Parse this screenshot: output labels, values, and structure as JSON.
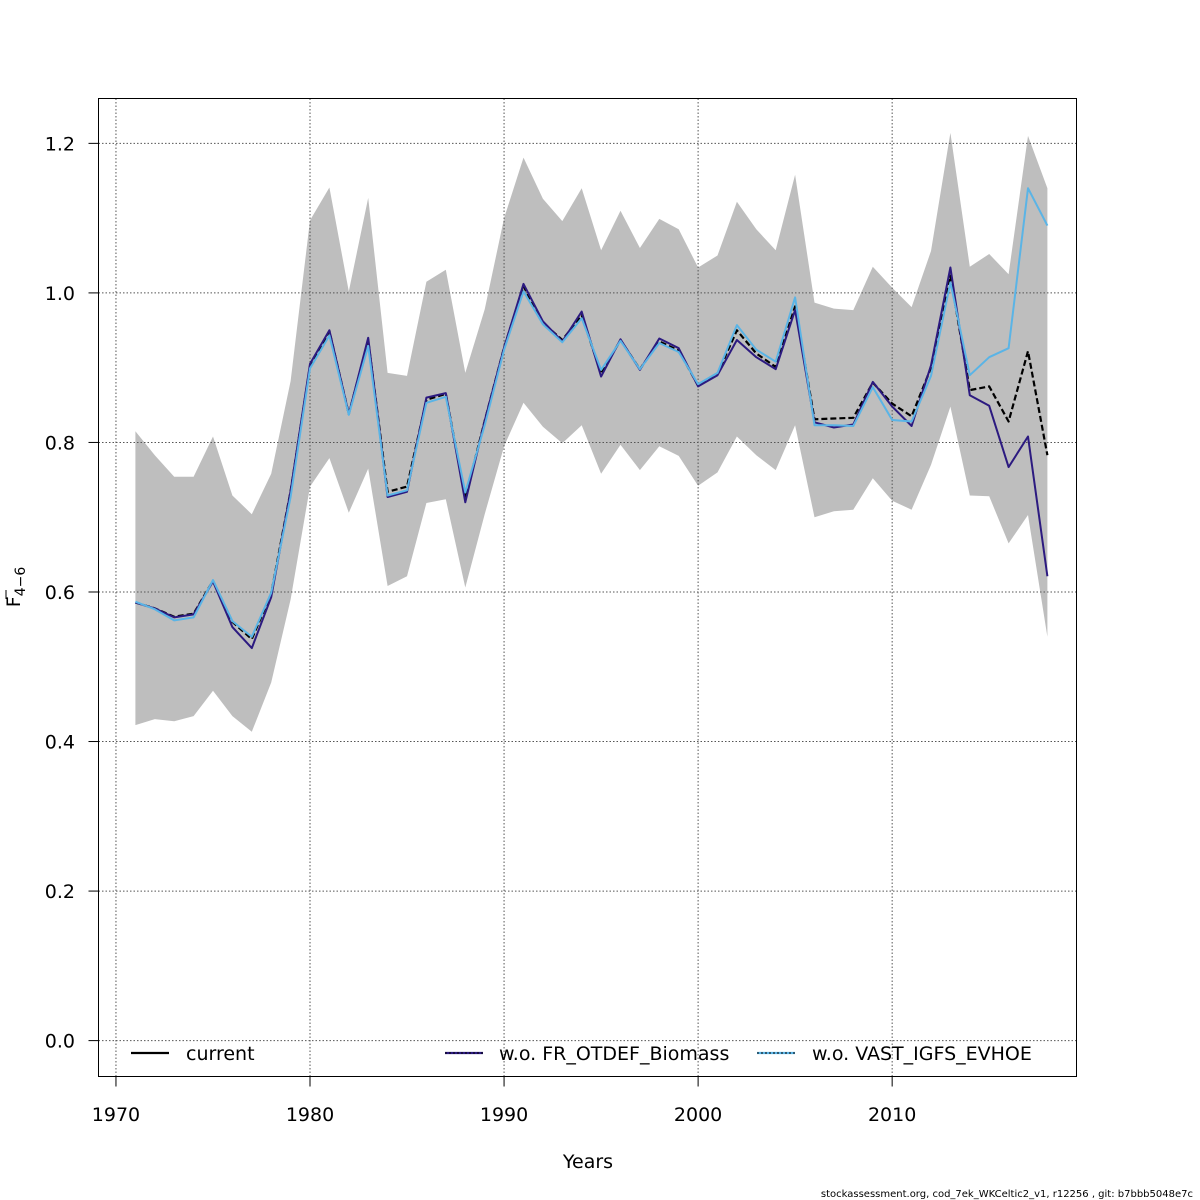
{
  "chart_data": {
    "type": "line",
    "xlabel": "Years",
    "ylabel_main": "F",
    "ylabel_sub": "4−6",
    "xlim": [
      1969.1,
      2019.5
    ],
    "ylim": [
      -0.048,
      1.26
    ],
    "x_ticks": [
      1970,
      1980,
      1990,
      2000,
      2010
    ],
    "y_ticks": [
      0.0,
      0.2,
      0.4,
      0.6,
      0.8,
      1.0,
      1.2
    ],
    "y_tick_labels": [
      "0.0",
      "0.2",
      "0.4",
      "0.6",
      "0.8",
      "1.0",
      "1.2"
    ],
    "grid": true,
    "x": [
      1971,
      1972,
      1973,
      1974,
      1975,
      1976,
      1977,
      1978,
      1979,
      1980,
      1981,
      1982,
      1983,
      1984,
      1985,
      1986,
      1987,
      1988,
      1989,
      1990,
      1991,
      1992,
      1993,
      1994,
      1995,
      1996,
      1997,
      1998,
      1999,
      2000,
      2001,
      2002,
      2003,
      2004,
      2005,
      2006,
      2007,
      2008,
      2009,
      2010,
      2011,
      2012,
      2013,
      2014,
      2015,
      2016,
      2017,
      2018
    ],
    "band": {
      "color": "#bebebe",
      "upper": [
        0.815,
        0.783,
        0.754,
        0.754,
        0.808,
        0.729,
        0.704,
        0.758,
        0.882,
        1.097,
        1.141,
        1.002,
        1.127,
        0.893,
        0.889,
        1.015,
        1.031,
        0.893,
        0.978,
        1.1,
        1.181,
        1.126,
        1.096,
        1.14,
        1.057,
        1.11,
        1.06,
        1.099,
        1.085,
        1.034,
        1.05,
        1.122,
        1.085,
        1.057,
        1.158,
        0.987,
        0.979,
        0.977,
        1.035,
        1.007,
        0.981,
        1.056,
        1.214,
        1.035,
        1.052,
        1.025,
        1.21,
        1.14
      ],
      "lower": [
        0.422,
        0.43,
        0.427,
        0.434,
        0.468,
        0.434,
        0.413,
        0.479,
        0.59,
        0.741,
        0.779,
        0.706,
        0.765,
        0.608,
        0.621,
        0.719,
        0.724,
        0.606,
        0.704,
        0.795,
        0.853,
        0.821,
        0.799,
        0.823,
        0.758,
        0.797,
        0.763,
        0.795,
        0.782,
        0.742,
        0.76,
        0.808,
        0.783,
        0.763,
        0.823,
        0.7,
        0.708,
        0.71,
        0.752,
        0.722,
        0.71,
        0.77,
        0.848,
        0.729,
        0.728,
        0.665,
        0.703,
        0.54
      ]
    },
    "series": [
      {
        "name": "current",
        "color": "#000000",
        "style": "dashed",
        "values": [
          0.586,
          0.578,
          0.567,
          0.571,
          0.615,
          0.56,
          0.537,
          0.598,
          0.735,
          0.902,
          0.949,
          0.838,
          0.937,
          0.734,
          0.741,
          0.857,
          0.865,
          0.726,
          0.829,
          0.927,
          1.009,
          0.96,
          0.937,
          0.97,
          0.892,
          0.937,
          0.898,
          0.935,
          0.923,
          0.876,
          0.892,
          0.95,
          0.919,
          0.901,
          0.982,
          0.831,
          0.832,
          0.833,
          0.88,
          0.852,
          0.835,
          0.9,
          1.023,
          0.87,
          0.875,
          0.828,
          0.922,
          0.783
        ]
      },
      {
        "name": "w.o. FR_OTDEF_Biomass",
        "color": "#2c1a80",
        "style": "solid",
        "values": [
          0.586,
          0.578,
          0.566,
          0.57,
          0.614,
          0.553,
          0.525,
          0.593,
          0.735,
          0.905,
          0.95,
          0.838,
          0.94,
          0.727,
          0.734,
          0.86,
          0.866,
          0.72,
          0.829,
          0.927,
          1.012,
          0.962,
          0.935,
          0.975,
          0.888,
          0.938,
          0.897,
          0.939,
          0.926,
          0.875,
          0.89,
          0.937,
          0.914,
          0.898,
          0.977,
          0.827,
          0.82,
          0.824,
          0.881,
          0.848,
          0.822,
          0.903,
          1.034,
          0.863,
          0.849,
          0.767,
          0.808,
          0.621
        ]
      },
      {
        "name": "w.o. VAST_IGFS_EVHOE",
        "color": "#5ab4e6",
        "style": "solid",
        "values": [
          0.587,
          0.577,
          0.562,
          0.566,
          0.616,
          0.561,
          0.54,
          0.599,
          0.727,
          0.899,
          0.943,
          0.837,
          0.929,
          0.729,
          0.736,
          0.853,
          0.861,
          0.733,
          0.823,
          0.924,
          1.002,
          0.958,
          0.934,
          0.966,
          0.897,
          0.936,
          0.898,
          0.933,
          0.921,
          0.878,
          0.893,
          0.957,
          0.924,
          0.908,
          0.994,
          0.823,
          0.823,
          0.822,
          0.874,
          0.83,
          0.828,
          0.889,
          1.014,
          0.89,
          0.914,
          0.926,
          1.14,
          1.09
        ]
      }
    ],
    "legend": {
      "placement": "bottom",
      "items": [
        {
          "label": "current",
          "color": "#000000"
        },
        {
          "label": "w.o. FR_OTDEF_Biomass",
          "color": "#2c1a80"
        },
        {
          "label": "w.o. VAST_IGFS_EVHOE",
          "color": "#5ab4e6"
        }
      ]
    }
  },
  "footer": "stockassessment.org, cod_7ek_WKCeltic2_v1, r12256 , git: b7bbb5048e7c"
}
